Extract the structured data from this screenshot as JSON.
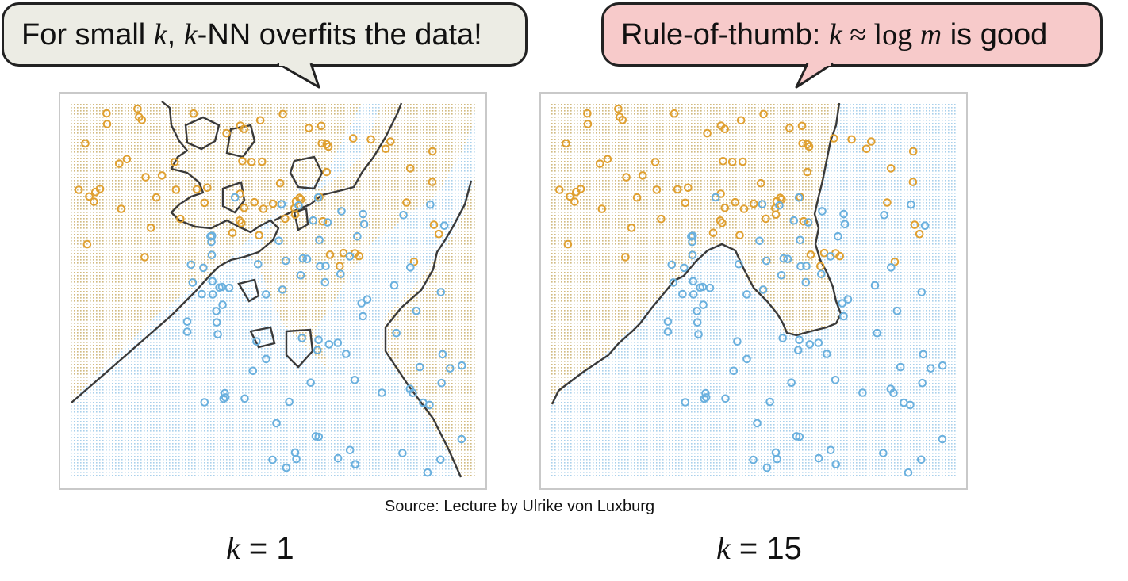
{
  "bubbles": {
    "left": {
      "pre": "For small ",
      "k1": "k",
      "mid": ", ",
      "k2": "k",
      "post": "-NN overfits the data!"
    },
    "right": {
      "pre": "Rule-of-thumb: ",
      "k": "k",
      "approx": " ≈ log ",
      "m": "m",
      "post": " is good"
    }
  },
  "source": "Source: Lecture by Ulrike von Luxburg",
  "panels": [
    {
      "k_symbol": "k",
      "equals": " = ",
      "k_value": "1"
    },
    {
      "k_symbol": "k",
      "equals": " = ",
      "k_value": "15"
    }
  ],
  "colors": {
    "class_orange": "#e0a030",
    "class_blue": "#6ab0de",
    "orange_bg": "#f2dcae",
    "blue_bg": "#cfe5f4",
    "boundary": "#3a3a3a",
    "bubble_left_bg": "#ecece4",
    "bubble_right_bg": "#f7caca"
  }
}
